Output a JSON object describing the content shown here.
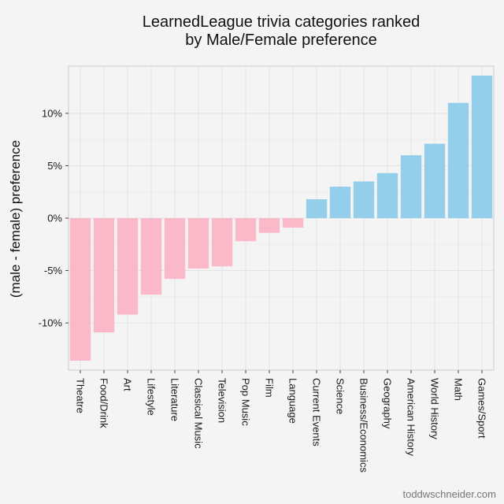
{
  "chart_data": {
    "type": "bar",
    "title_lines": [
      "LearnedLeague trivia categories ranked",
      "by Male/Female preference"
    ],
    "xlabel": "",
    "ylabel": "(male - female) preference",
    "ylim": [
      -14.5,
      14.5
    ],
    "y_ticks": [
      -10,
      -5,
      0,
      5,
      10
    ],
    "y_tick_labels": [
      "-10%",
      "-5%",
      "0%",
      "5%",
      "10%"
    ],
    "grid": true,
    "legend": "none",
    "colors": {
      "negative": "#fbb8c8",
      "positive": "#93cfea",
      "background": "#f4f4f4",
      "grid": "#e3e3e3",
      "border": "#cccccc"
    },
    "categories": [
      "Theatre",
      "Food/Drink",
      "Art",
      "Lifestyle",
      "Literature",
      "Classical Music",
      "Television",
      "Pop Music",
      "Film",
      "Language",
      "Current Events",
      "Science",
      "Business/Economics",
      "Geography",
      "American History",
      "World History",
      "Math",
      "Games/Sport"
    ],
    "values": [
      -13.6,
      -10.9,
      -9.2,
      -7.3,
      -5.8,
      -4.8,
      -4.6,
      -2.2,
      -1.4,
      -0.9,
      1.8,
      3.0,
      3.5,
      4.3,
      6.0,
      7.1,
      11.0,
      13.6
    ]
  },
  "credit": "toddwschneider.com"
}
